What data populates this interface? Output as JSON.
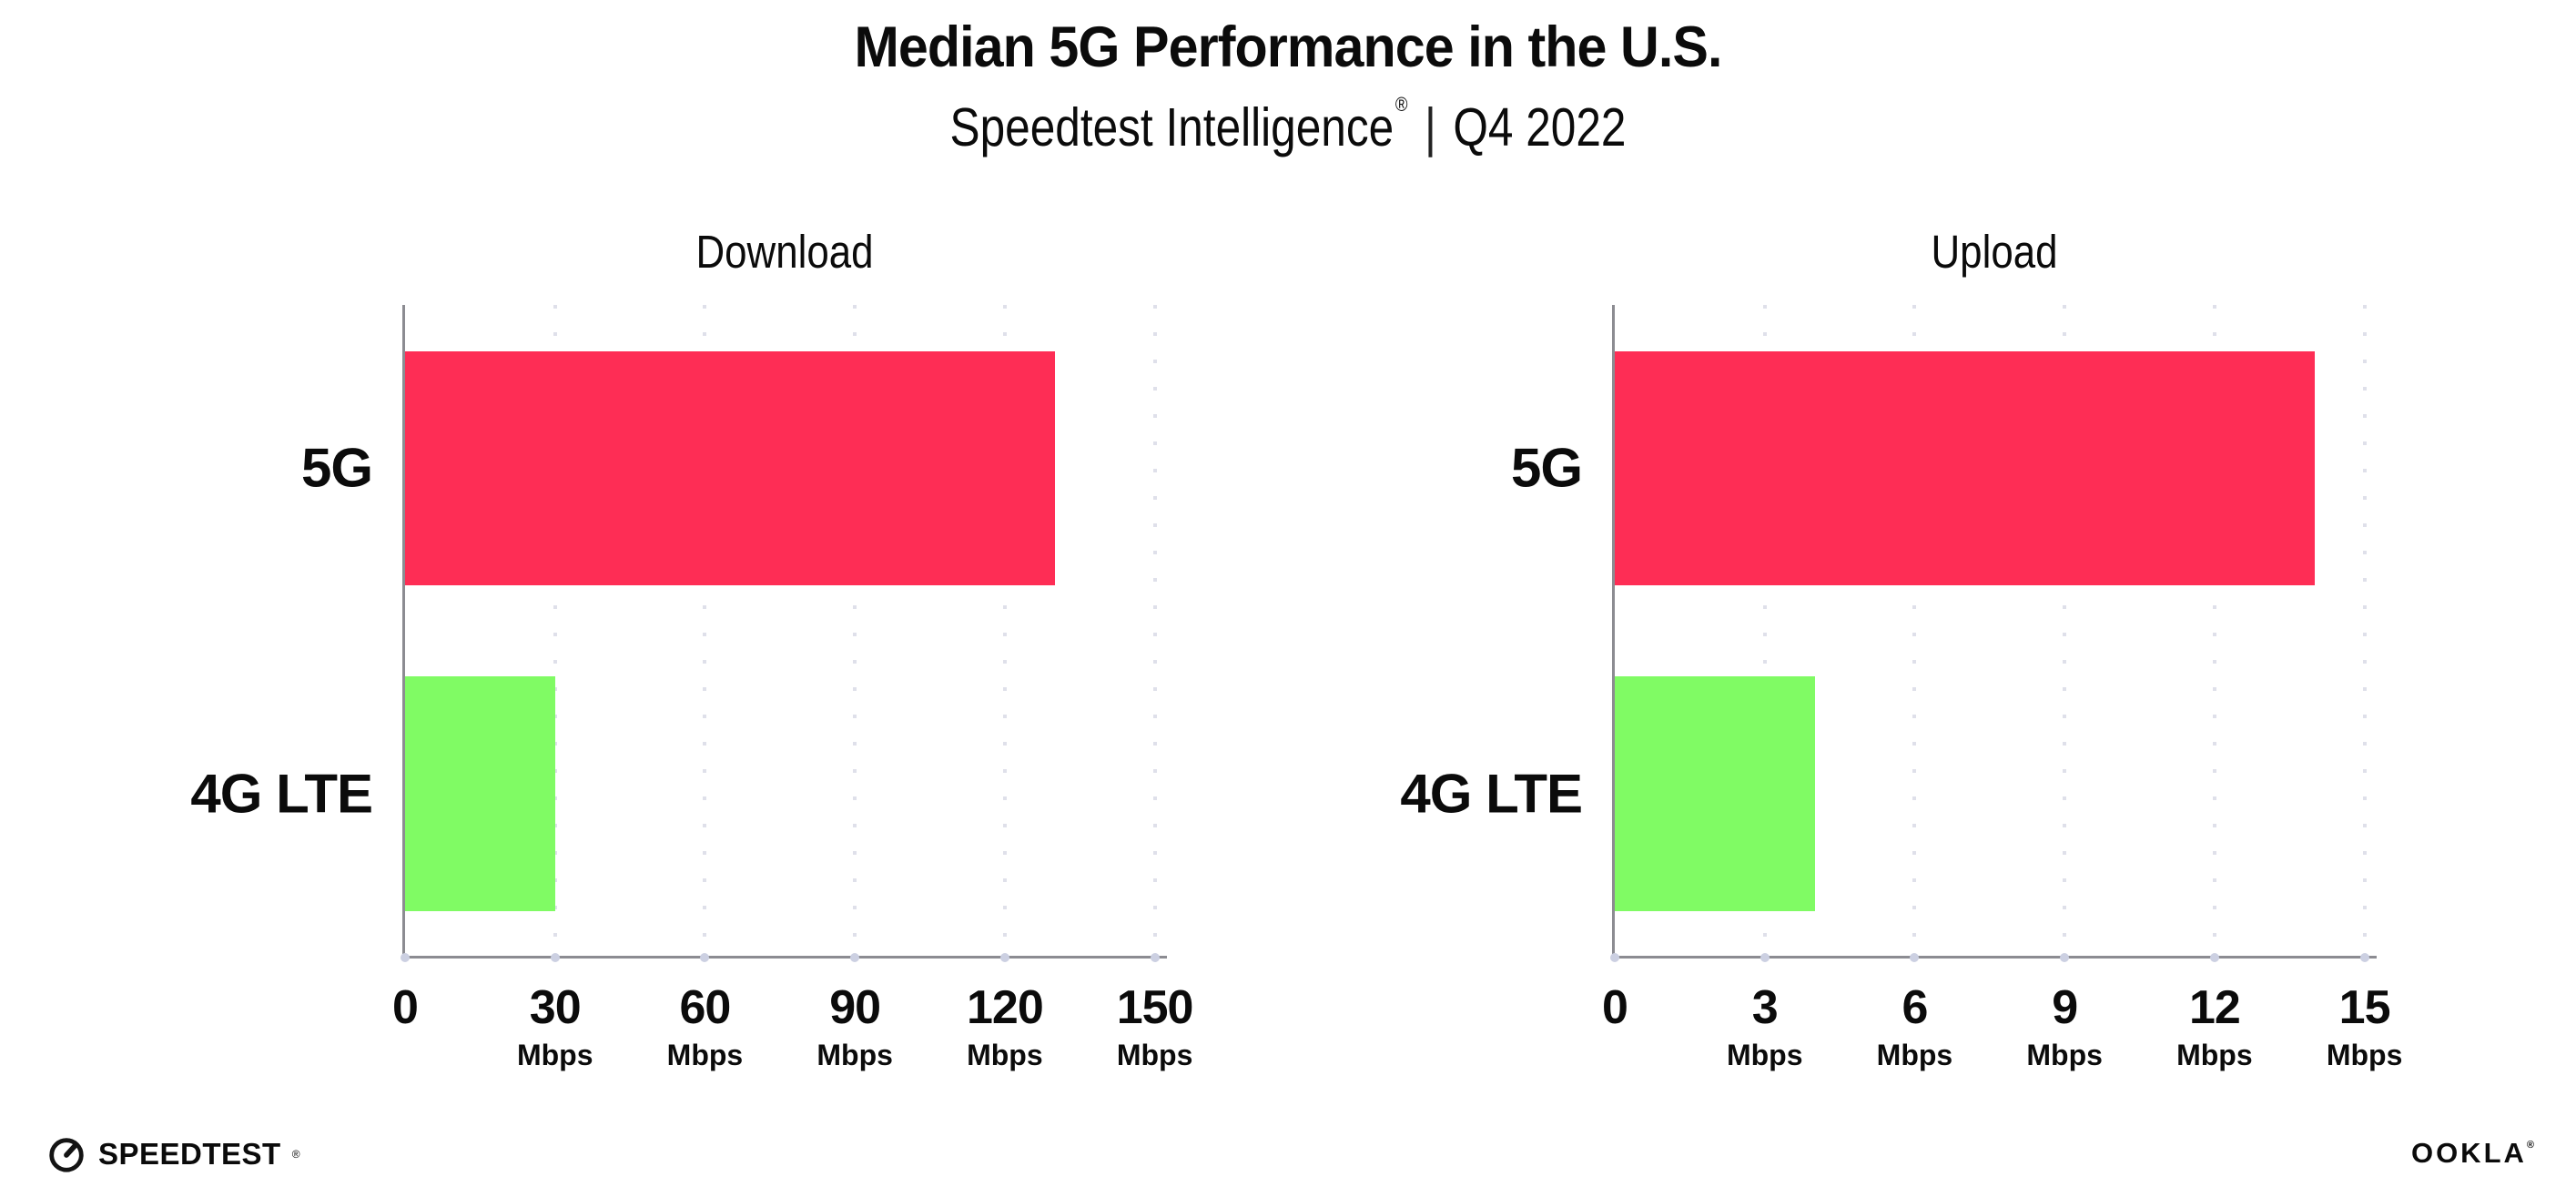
{
  "header": {
    "title": "Median 5G Performance in the U.S.",
    "subtitle": {
      "product": "Speedtest Intelligence",
      "registered_mark": "®",
      "separator": "|",
      "period": "Q4 2022"
    }
  },
  "chart_data": [
    {
      "type": "bar",
      "orientation": "horizontal",
      "title": "Download",
      "categories": [
        "5G",
        "4G LTE"
      ],
      "values": [
        130,
        30
      ],
      "unit": "Mbps",
      "xlabel": "",
      "ylabel": "",
      "xlim": [
        0,
        150
      ],
      "xticks": [
        0,
        30,
        60,
        90,
        120,
        150
      ],
      "grid": "vertical-dotted",
      "legend": "none",
      "bar_colors": [
        "#FE2D55",
        "#80FB64"
      ]
    },
    {
      "type": "bar",
      "orientation": "horizontal",
      "title": "Upload",
      "categories": [
        "5G",
        "4G LTE"
      ],
      "values": [
        14,
        4
      ],
      "unit": "Mbps",
      "xlabel": "",
      "ylabel": "",
      "xlim": [
        0,
        15
      ],
      "xticks": [
        0,
        3,
        6,
        9,
        12,
        15
      ],
      "grid": "vertical-dotted",
      "legend": "none",
      "bar_colors": [
        "#FE2D55",
        "#80FB64"
      ]
    }
  ],
  "footer": {
    "speedtest_logo": "SPEEDTEST",
    "speedtest_mark": "®",
    "ookla_logo": "OOKLA",
    "ookla_mark": "®"
  },
  "colors": {
    "bar_5g": "#FE2D55",
    "bar_4g_lte": "#80FB64",
    "axis_line": "#8c8c92",
    "gridline_dots": "#dfe0ea",
    "tick_dots": "#ccd0e2",
    "text": "#0b0b0b",
    "background": "#ffffff"
  }
}
